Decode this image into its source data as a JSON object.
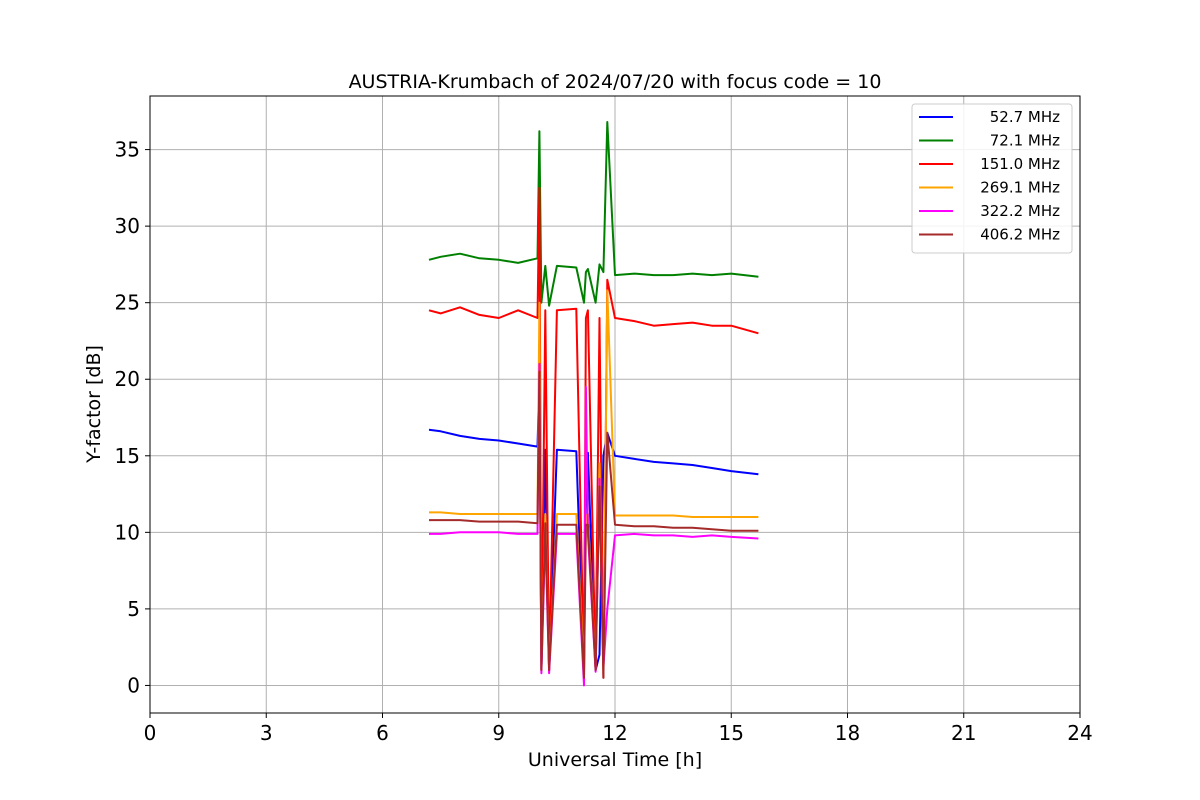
{
  "chart_data": {
    "type": "line",
    "title": "AUSTRIA-Krumbach of 2024/07/20 with focus code = 10",
    "xlabel": "Universal Time [h]",
    "ylabel": "Y-factor [dB]",
    "xlim": [
      0,
      24
    ],
    "ylim": [
      -1.8,
      38.5
    ],
    "xticks": [
      0,
      3,
      6,
      9,
      12,
      15,
      18,
      21,
      24
    ],
    "yticks": [
      0,
      5,
      10,
      15,
      20,
      25,
      30,
      35
    ],
    "grid": true,
    "legend_position": "top-right",
    "series": [
      {
        "name": "52.7 MHz",
        "color": "#0000ff",
        "x": [
          7.2,
          7.5,
          8.0,
          8.5,
          9.0,
          9.5,
          10.0,
          10.05,
          10.1,
          10.2,
          10.3,
          10.5,
          11.0,
          11.2,
          11.25,
          11.3,
          11.5,
          11.6,
          11.7,
          11.8,
          12.0,
          12.5,
          13.0,
          13.5,
          14.0,
          14.5,
          15.0,
          15.7
        ],
        "y": [
          16.7,
          16.6,
          16.3,
          16.1,
          16.0,
          15.8,
          15.6,
          20.0,
          1.0,
          15.4,
          1.0,
          15.4,
          15.3,
          1.0,
          15.2,
          15.2,
          1.0,
          2.0,
          15.0,
          16.5,
          15.0,
          14.8,
          14.6,
          14.5,
          14.4,
          14.2,
          14.0,
          13.8
        ]
      },
      {
        "name": "72.1 MHz",
        "color": "#008000",
        "x": [
          7.2,
          7.5,
          8.0,
          8.5,
          9.0,
          9.5,
          10.0,
          10.05,
          10.1,
          10.2,
          10.3,
          10.5,
          11.0,
          11.2,
          11.25,
          11.3,
          11.5,
          11.6,
          11.7,
          11.8,
          12.0,
          12.5,
          13.0,
          13.5,
          14.0,
          14.5,
          15.0,
          15.7
        ],
        "y": [
          27.8,
          28.0,
          28.2,
          27.9,
          27.8,
          27.6,
          27.9,
          36.2,
          25.0,
          27.4,
          24.8,
          27.4,
          27.3,
          25.0,
          27.0,
          27.2,
          25.0,
          27.5,
          27.0,
          36.8,
          26.8,
          26.9,
          26.8,
          26.8,
          26.9,
          26.8,
          26.9,
          26.7
        ]
      },
      {
        "name": "151.0 MHz",
        "color": "#ff0000",
        "x": [
          7.2,
          7.5,
          8.0,
          8.5,
          9.0,
          9.5,
          10.0,
          10.05,
          10.1,
          10.2,
          10.3,
          10.5,
          11.0,
          11.2,
          11.25,
          11.3,
          11.5,
          11.6,
          11.7,
          11.8,
          12.0,
          12.5,
          13.0,
          13.5,
          14.0,
          14.5,
          15.0,
          15.7
        ],
        "y": [
          24.5,
          24.3,
          24.7,
          24.2,
          24.0,
          24.5,
          24.0,
          32.5,
          1.0,
          24.5,
          1.0,
          24.5,
          24.6,
          1.0,
          24.0,
          24.5,
          1.0,
          24.0,
          0.5,
          26.5,
          24.0,
          23.8,
          23.5,
          23.6,
          23.7,
          23.5,
          23.5,
          23.0
        ]
      },
      {
        "name": "269.1 MHz",
        "color": "#ffa500",
        "x": [
          7.2,
          7.5,
          8.0,
          8.5,
          9.0,
          9.5,
          10.0,
          10.05,
          10.1,
          10.2,
          10.3,
          10.5,
          11.0,
          11.2,
          11.25,
          11.3,
          11.5,
          11.6,
          11.7,
          11.8,
          12.0,
          12.5,
          13.0,
          13.5,
          14.0,
          14.5,
          15.0,
          15.7
        ],
        "y": [
          11.3,
          11.3,
          11.2,
          11.2,
          11.2,
          11.2,
          11.2,
          25.0,
          1.0,
          11.2,
          1.0,
          11.2,
          11.2,
          1.0,
          11.1,
          11.2,
          1.0,
          14.5,
          1.0,
          25.8,
          11.1,
          11.1,
          11.1,
          11.1,
          11.0,
          11.0,
          11.0,
          11.0
        ]
      },
      {
        "name": "322.2 MHz",
        "color": "#ff00ff",
        "x": [
          7.2,
          7.5,
          8.0,
          8.5,
          9.0,
          9.5,
          10.0,
          10.05,
          10.1,
          10.2,
          10.3,
          10.5,
          11.0,
          11.2,
          11.25,
          11.3,
          11.5,
          11.6,
          11.7,
          11.8,
          12.0,
          12.5,
          13.0,
          13.5,
          14.0,
          14.5,
          15.0,
          15.7
        ],
        "y": [
          9.9,
          9.9,
          10.0,
          10.0,
          10.0,
          9.9,
          9.9,
          21.0,
          0.8,
          9.9,
          0.8,
          9.9,
          9.9,
          0.0,
          19.5,
          9.9,
          0.9,
          13.5,
          1.2,
          5.0,
          9.8,
          9.9,
          9.8,
          9.8,
          9.7,
          9.8,
          9.7,
          9.6
        ]
      },
      {
        "name": "406.2 MHz",
        "color": "#a52a2a",
        "x": [
          7.2,
          7.5,
          8.0,
          8.5,
          9.0,
          9.5,
          10.0,
          10.05,
          10.1,
          10.2,
          10.3,
          10.5,
          11.0,
          11.2,
          11.25,
          11.3,
          11.5,
          11.6,
          11.7,
          11.8,
          12.0,
          12.5,
          13.0,
          13.5,
          14.0,
          14.5,
          15.0,
          15.7
        ],
        "y": [
          10.8,
          10.8,
          10.8,
          10.7,
          10.7,
          10.7,
          10.6,
          20.5,
          1.0,
          10.6,
          1.0,
          10.5,
          10.5,
          0.5,
          10.5,
          10.5,
          1.0,
          13.0,
          0.5,
          16.5,
          10.5,
          10.4,
          10.4,
          10.3,
          10.3,
          10.2,
          10.1,
          10.1
        ]
      }
    ]
  }
}
